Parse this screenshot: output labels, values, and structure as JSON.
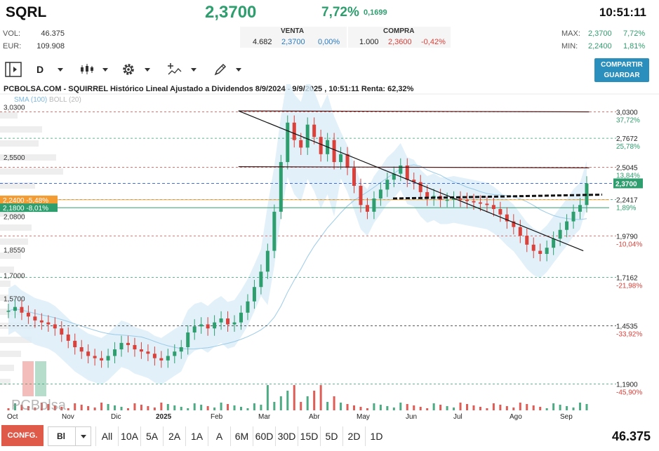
{
  "header": {
    "ticker": "SQRL",
    "price": "2,3700",
    "change_pct": "7,72%",
    "change_abs": "0,1699",
    "time": "10:51:11"
  },
  "stats": {
    "vol_label": "VOL:",
    "vol_value": "46.375",
    "eur_label": "EUR:",
    "eur_value": "109.908"
  },
  "quote": {
    "venta_label": "VENTA",
    "venta_qty": "4.682",
    "venta_price": "2,3700",
    "venta_pct": "0,00%",
    "compra_label": "COMPRA",
    "compra_qty": "1.000",
    "compra_price": "2,3600",
    "compra_pct": "-0,42%"
  },
  "range": {
    "max_label": "MAX:",
    "max_value": "2,3700",
    "max_pct": "7,72%",
    "min_label": "MIN:",
    "min_value": "2,2400",
    "min_pct": "1,81%"
  },
  "toolbar": {
    "period_label": "D",
    "share_label_1": "COMPARTIR",
    "share_label_2": "GUARDAR"
  },
  "chart_title": "PCBOLSA.COM - SQUIRREL Histórico Lineal Ajustado a Dividendos 8/9/2024 - 9/9/2025 , 10:51:11 Renta: 62,32%",
  "legend": {
    "sma": "SMA (100)",
    "boll": "BOLL (20)"
  },
  "watermark": {
    "brand": "PCBolsa"
  },
  "chart_data": {
    "type": "candlestick",
    "title": "PCBOLSA.COM - SQUIRREL Histórico Lineal Ajustado a Dividendos 8/9/2024 - 9/9/2025 , 10:51:11 Renta: 62,32%",
    "x_labels": [
      "Oct",
      "Nov",
      "Dic",
      "2025",
      "Feb",
      "Mar",
      "Abr",
      "May",
      "Jun",
      "Jul",
      "Ago",
      "Sep"
    ],
    "ylim": [
      1.1,
      3.1
    ],
    "scale": "log",
    "left_levels": [
      "3,0300",
      "2,5500",
      "2,0800",
      "1,8550",
      "1,7000",
      "1,5700"
    ],
    "right_levels": [
      {
        "price": "3,0300",
        "pct": "37,72%"
      },
      {
        "price": "2,7672",
        "pct": "25,78%"
      },
      {
        "price": "2,5045",
        "pct": "13,84%"
      },
      {
        "price": "2,2417",
        "pct": "1,89%"
      },
      {
        "price": "1,9790",
        "pct": "-10,04%"
      },
      {
        "price": "1,7162",
        "pct": "-21,98%"
      },
      {
        "price": "1,4535",
        "pct": "-33,92%"
      },
      {
        "price": "1,1900",
        "pct": "-45,90%"
      }
    ],
    "current_price": "2,3700",
    "markers": [
      {
        "label": "2,2400 -5,48%",
        "value": 2.24,
        "color": "#f39c33"
      },
      {
        "label": "2,1800 -8,01%",
        "value": 2.18,
        "color": "#2e9e6e"
      }
    ],
    "series_close": [
      1.53,
      1.55,
      1.52,
      1.5,
      1.48,
      1.47,
      1.46,
      1.44,
      1.41,
      1.38,
      1.35,
      1.33,
      1.31,
      1.3,
      1.29,
      1.31,
      1.34,
      1.37,
      1.36,
      1.34,
      1.33,
      1.32,
      1.3,
      1.29,
      1.31,
      1.33,
      1.35,
      1.42,
      1.45,
      1.46,
      1.44,
      1.47,
      1.49,
      1.46,
      1.47,
      1.52,
      1.58,
      1.66,
      1.75,
      1.88,
      2.15,
      2.55,
      2.92,
      2.75,
      2.68,
      2.9,
      2.78,
      2.62,
      2.75,
      2.55,
      2.62,
      2.5,
      2.35,
      2.2,
      2.15,
      2.25,
      2.32,
      2.4,
      2.45,
      2.52,
      2.4,
      2.38,
      2.3,
      2.25,
      2.27,
      2.24,
      2.24,
      2.25,
      2.24,
      2.23,
      2.22,
      2.21,
      2.2,
      2.17,
      2.13,
      2.08,
      2.04,
      1.98,
      1.92,
      1.88,
      1.86,
      1.9,
      1.96,
      2.02,
      2.08,
      2.15,
      2.2,
      2.37
    ],
    "trendlines": [
      {
        "from": [
          0.395,
          3.04
        ],
        "to": [
          0.99,
          3.03
        ],
        "color": "#4a1a1a"
      },
      {
        "from": [
          0.395,
          2.51
        ],
        "to": [
          0.99,
          2.5
        ],
        "color": "#4a1a1a"
      },
      {
        "from": [
          0.395,
          3.04
        ],
        "to": [
          0.98,
          1.88
        ],
        "color": "#111111"
      }
    ]
  },
  "bottom": {
    "config_label": "CONFG.",
    "type_label": "Bl",
    "ranges": [
      "All",
      "10A",
      "5A",
      "2A",
      "1A",
      "A",
      "6M",
      "60D",
      "30D",
      "15D",
      "5D",
      "2D",
      "1D"
    ],
    "volume": "46.375"
  }
}
